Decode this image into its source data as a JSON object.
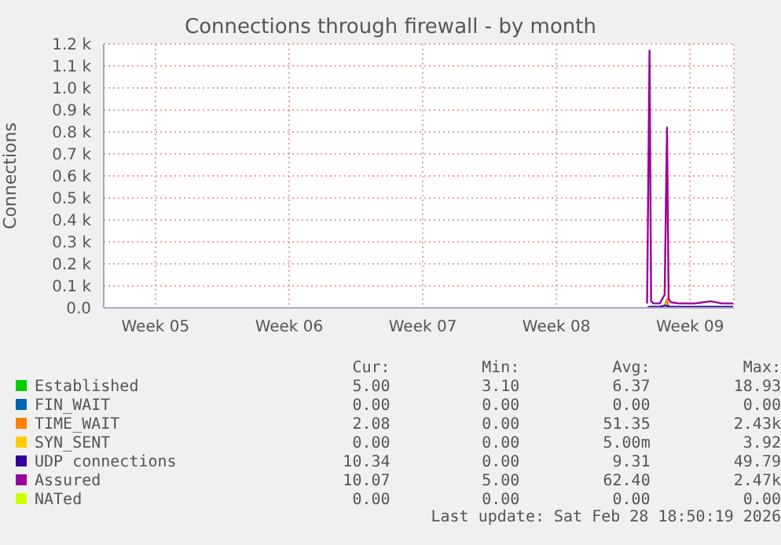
{
  "chart_data": {
    "type": "line",
    "title": "Connections through firewall - by month",
    "ylabel": "Connections",
    "x": [
      "2026-02-24T06:00",
      "2026-02-24T09:00",
      "2026-02-24T11:00",
      "2026-02-24T14:00",
      "2026-02-24T22:00",
      "2026-02-25T04:00",
      "2026-02-25T07:00",
      "2026-02-25T09:00",
      "2026-02-25T12:00",
      "2026-02-25T22:00",
      "2026-02-26T08:00",
      "2026-02-26T18:00",
      "2026-02-27T04:00",
      "2026-02-27T14:00",
      "2026-02-28T04:00",
      "2026-02-28T18:00"
    ],
    "xlim": [
      "2026-01-26T19:00",
      "2026-02-28T19:00"
    ],
    "xticks": [
      {
        "value": "2026-01-29T12:00",
        "label": "Week 05"
      },
      {
        "value": "2026-02-05T12:00",
        "label": "Week 06"
      },
      {
        "value": "2026-02-12T12:00",
        "label": "Week 07"
      },
      {
        "value": "2026-02-19T12:00",
        "label": "Week 08"
      },
      {
        "value": "2026-02-26T12:00",
        "label": "Week 09"
      }
    ],
    "ylim": [
      0,
      1200
    ],
    "yticks": [
      {
        "value": 0,
        "label": "0.0"
      },
      {
        "value": 100,
        "label": "0.1 k"
      },
      {
        "value": 200,
        "label": "0.2 k"
      },
      {
        "value": 300,
        "label": "0.3 k"
      },
      {
        "value": 400,
        "label": "0.4 k"
      },
      {
        "value": 500,
        "label": "0.5 k"
      },
      {
        "value": 600,
        "label": "0.6 k"
      },
      {
        "value": 700,
        "label": "0.7 k"
      },
      {
        "value": 800,
        "label": "0.8 k"
      },
      {
        "value": 900,
        "label": "0.9 k"
      },
      {
        "value": 1000,
        "label": "1.0 k"
      },
      {
        "value": 1100,
        "label": "1.1 k"
      },
      {
        "value": 1200,
        "label": "1.2 k"
      }
    ],
    "series": [
      {
        "name": "Established",
        "color": "#00cc00",
        "values": [
          null,
          null,
          null,
          null,
          null,
          null,
          null,
          null,
          null,
          null,
          null,
          null,
          null,
          null,
          null,
          null
        ]
      },
      {
        "name": "FIN_WAIT",
        "color": "#0066b3",
        "values": [
          null,
          null,
          null,
          null,
          null,
          null,
          null,
          null,
          null,
          null,
          null,
          null,
          null,
          null,
          null,
          null
        ]
      },
      {
        "name": "TIME_WAIT",
        "color": "#ff8000",
        "values": [
          null,
          null,
          null,
          null,
          null,
          10,
          40,
          5,
          null,
          null,
          null,
          null,
          null,
          null,
          null,
          null
        ]
      },
      {
        "name": "SYN_SENT",
        "color": "#ffcc00",
        "values": [
          null,
          null,
          null,
          null,
          null,
          null,
          null,
          null,
          null,
          null,
          null,
          null,
          null,
          null,
          null,
          null
        ]
      },
      {
        "name": "UDP connections",
        "color": "#330099",
        "values": [
          0,
          5,
          5,
          5,
          5,
          10,
          10,
          5,
          5,
          5,
          5,
          5,
          5,
          5,
          5,
          5
        ]
      },
      {
        "name": "Assured",
        "color": "#990099",
        "values": [
          20,
          1170,
          30,
          20,
          20,
          60,
          820,
          40,
          25,
          20,
          20,
          20,
          25,
          30,
          20,
          20
        ]
      },
      {
        "name": "NATed",
        "color": "#ccff00",
        "values": [
          null,
          null,
          null,
          null,
          null,
          null,
          null,
          null,
          null,
          null,
          null,
          null,
          null,
          null,
          null,
          null
        ]
      }
    ],
    "annotations": [
      "Cur:",
      "Min:",
      "Avg:",
      "Max:",
      "5.00",
      "3.10",
      "6.37",
      "18.93",
      "0.00",
      "0.00",
      "0.00",
      "0.00",
      "2.08",
      "0.00",
      "51.35",
      "2.43k",
      "0.00",
      "0.00",
      "5.00m",
      "3.92",
      "10.34",
      "0.00",
      "9.31",
      "49.79",
      "10.07",
      "5.00",
      "62.40",
      "2.47k",
      "0.00",
      "0.00",
      "0.00",
      "0.00",
      "Last update: Sat Feb 28 18:50:19 2026"
    ],
    "grid": true,
    "legend": "bottom",
    "marker": "none",
    "line_style": "solid"
  }
}
